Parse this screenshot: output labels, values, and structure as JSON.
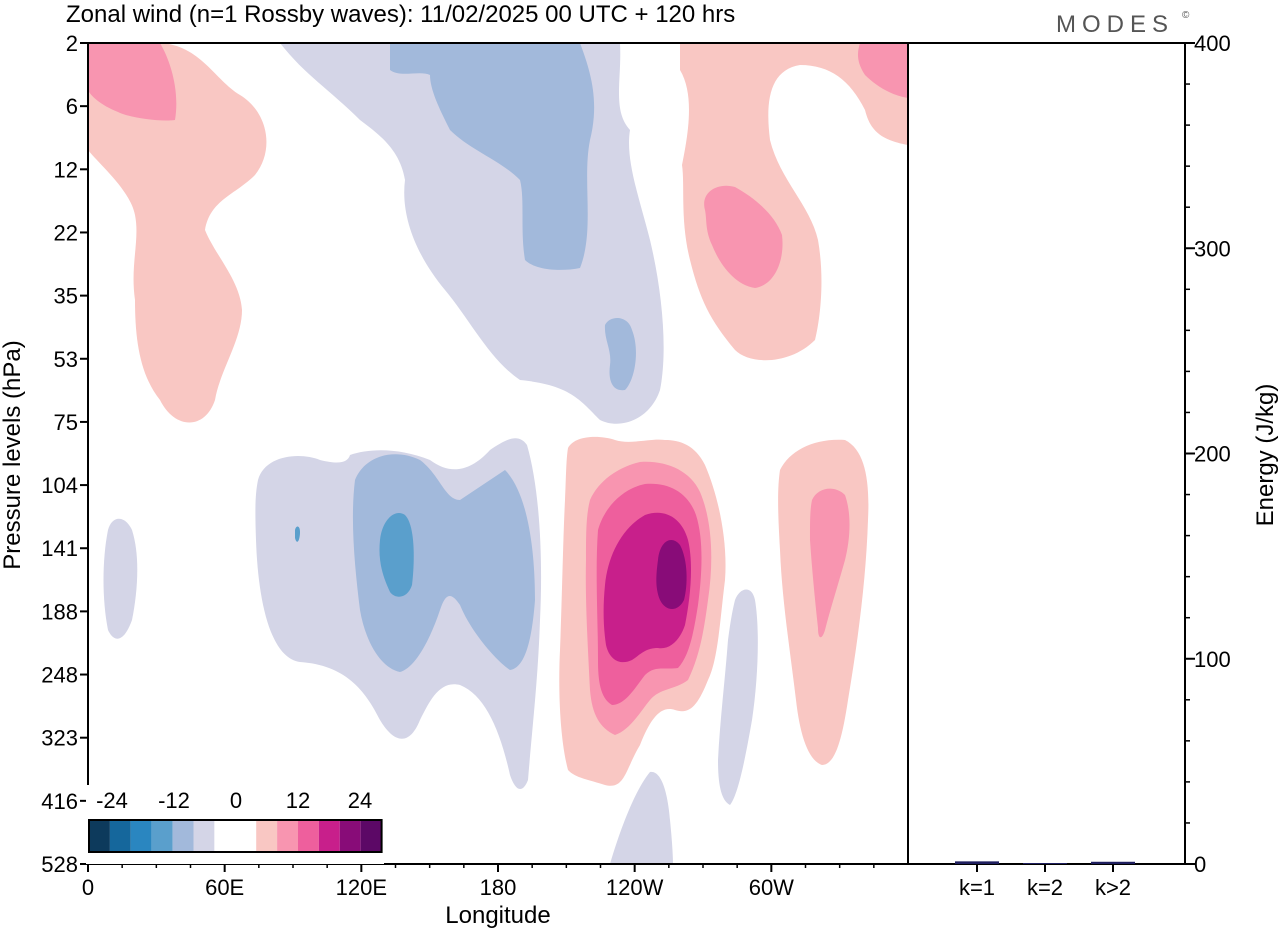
{
  "title": "Zonal wind (n=1 Rossby waves):  11/02/2025  00 UTC  + 120 hrs",
  "brand": "MODES",
  "brand_mark": "©",
  "colors": {
    "neg": [
      "#0d3a5c",
      "#15679c",
      "#2a86c0",
      "#5a9fcc",
      "#a2b9db",
      "#d4d5e7"
    ],
    "zero": "#ffffff",
    "pos": [
      "#f9c7c3",
      "#f895b0",
      "#ee5f9d",
      "#c81f8b",
      "#880c78",
      "#5c0866"
    ]
  },
  "chart_data": [
    {
      "type": "heatmap",
      "quantity": "Zonal wind (n=1 Rossby waves)",
      "xlabel": "Longitude",
      "ylabel": "Pressure levels (hPa)",
      "x_ticks": [
        "0",
        "60E",
        "120E",
        "180",
        "120W",
        "60W"
      ],
      "x_tick_values": [
        0,
        60,
        120,
        180,
        240,
        300
      ],
      "xlim": [
        0,
        360
      ],
      "y_ticks": [
        "2",
        "6",
        "12",
        "22",
        "35",
        "53",
        "75",
        "104",
        "141",
        "188",
        "248",
        "323",
        "416",
        "528"
      ],
      "colorbar_labels": [
        "-24",
        "-12",
        "0",
        "12",
        "24"
      ],
      "colorbar_levels": [
        -30,
        -25,
        -20,
        -15,
        -10,
        -5,
        0,
        5,
        10,
        15,
        20,
        25,
        30
      ],
      "features": [
        {
          "sign": "positive",
          "lon": 40,
          "level_range": [
            "2",
            "75"
          ],
          "max": 12
        },
        {
          "sign": "negative",
          "lon": 170,
          "level_range": [
            "2",
            "75"
          ],
          "min": -12
        },
        {
          "sign": "positive",
          "lon": 300,
          "level_range": [
            "2",
            "53"
          ],
          "max": 16
        },
        {
          "sign": "negative",
          "lon": 140,
          "level_range": [
            "104",
            "323"
          ],
          "min": -18
        },
        {
          "sign": "positive",
          "lon": 250,
          "level_range": [
            "104",
            "416"
          ],
          "max": 27
        },
        {
          "sign": "positive",
          "lon": 325,
          "level_range": [
            "104",
            "323"
          ],
          "max": 10
        },
        {
          "sign": "negative",
          "lon": 285,
          "level_range": [
            "188",
            "416"
          ],
          "min": -7
        },
        {
          "sign": "negative",
          "lon": 10,
          "level_range": [
            "141",
            "188"
          ],
          "min": -7
        }
      ]
    },
    {
      "type": "bar",
      "categories": [
        "k=1",
        "k=2",
        "k>2"
      ],
      "values": [
        0.8,
        0.0,
        0.6
      ],
      "ylabel": "Energy (J/kg)",
      "y_ticks": [
        "0",
        "100",
        "200",
        "300",
        "400"
      ],
      "ylim": [
        0,
        400
      ],
      "bar_color": "#1f1f5f"
    }
  ]
}
